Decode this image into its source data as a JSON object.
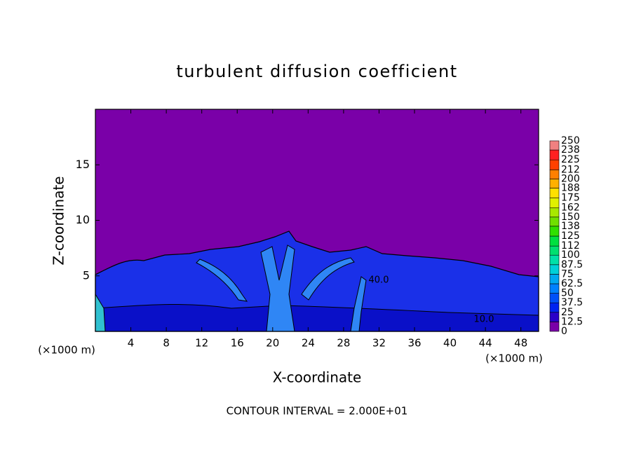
{
  "chart_data": {
    "type": "contour",
    "title": "turbulent diffusion coefficient",
    "xlabel": "X-coordinate",
    "ylabel": "Z-coordinate",
    "x_unit": "(×1000 m)",
    "footer": "CONTOUR INTERVAL = 2.000E+01",
    "xlim": [
      0,
      50
    ],
    "xticks": [
      4,
      8,
      12,
      16,
      20,
      24,
      28,
      32,
      36,
      40,
      44,
      48
    ],
    "ylim": [
      0,
      20
    ],
    "yticks": [
      5,
      10,
      15
    ],
    "contour_labels": [
      "40.0",
      "10.0"
    ],
    "colorbar": {
      "levels": [
        0,
        12.5,
        25,
        37.5,
        50,
        62.5,
        75,
        87.5,
        100,
        112,
        125,
        138,
        150,
        162,
        175,
        188,
        200,
        212,
        225,
        238,
        250
      ],
      "colors": [
        "#7a00a8",
        "#2a00c8",
        "#0022f0",
        "#0050f8",
        "#0080ff",
        "#00a8f0",
        "#00d0d8",
        "#00e0a8",
        "#00e070",
        "#00e040",
        "#30e000",
        "#70e000",
        "#a8e800",
        "#e0f000",
        "#ffe000",
        "#ffb000",
        "#ff8000",
        "#ff4000",
        "#ff2020",
        "#f08080"
      ]
    }
  }
}
